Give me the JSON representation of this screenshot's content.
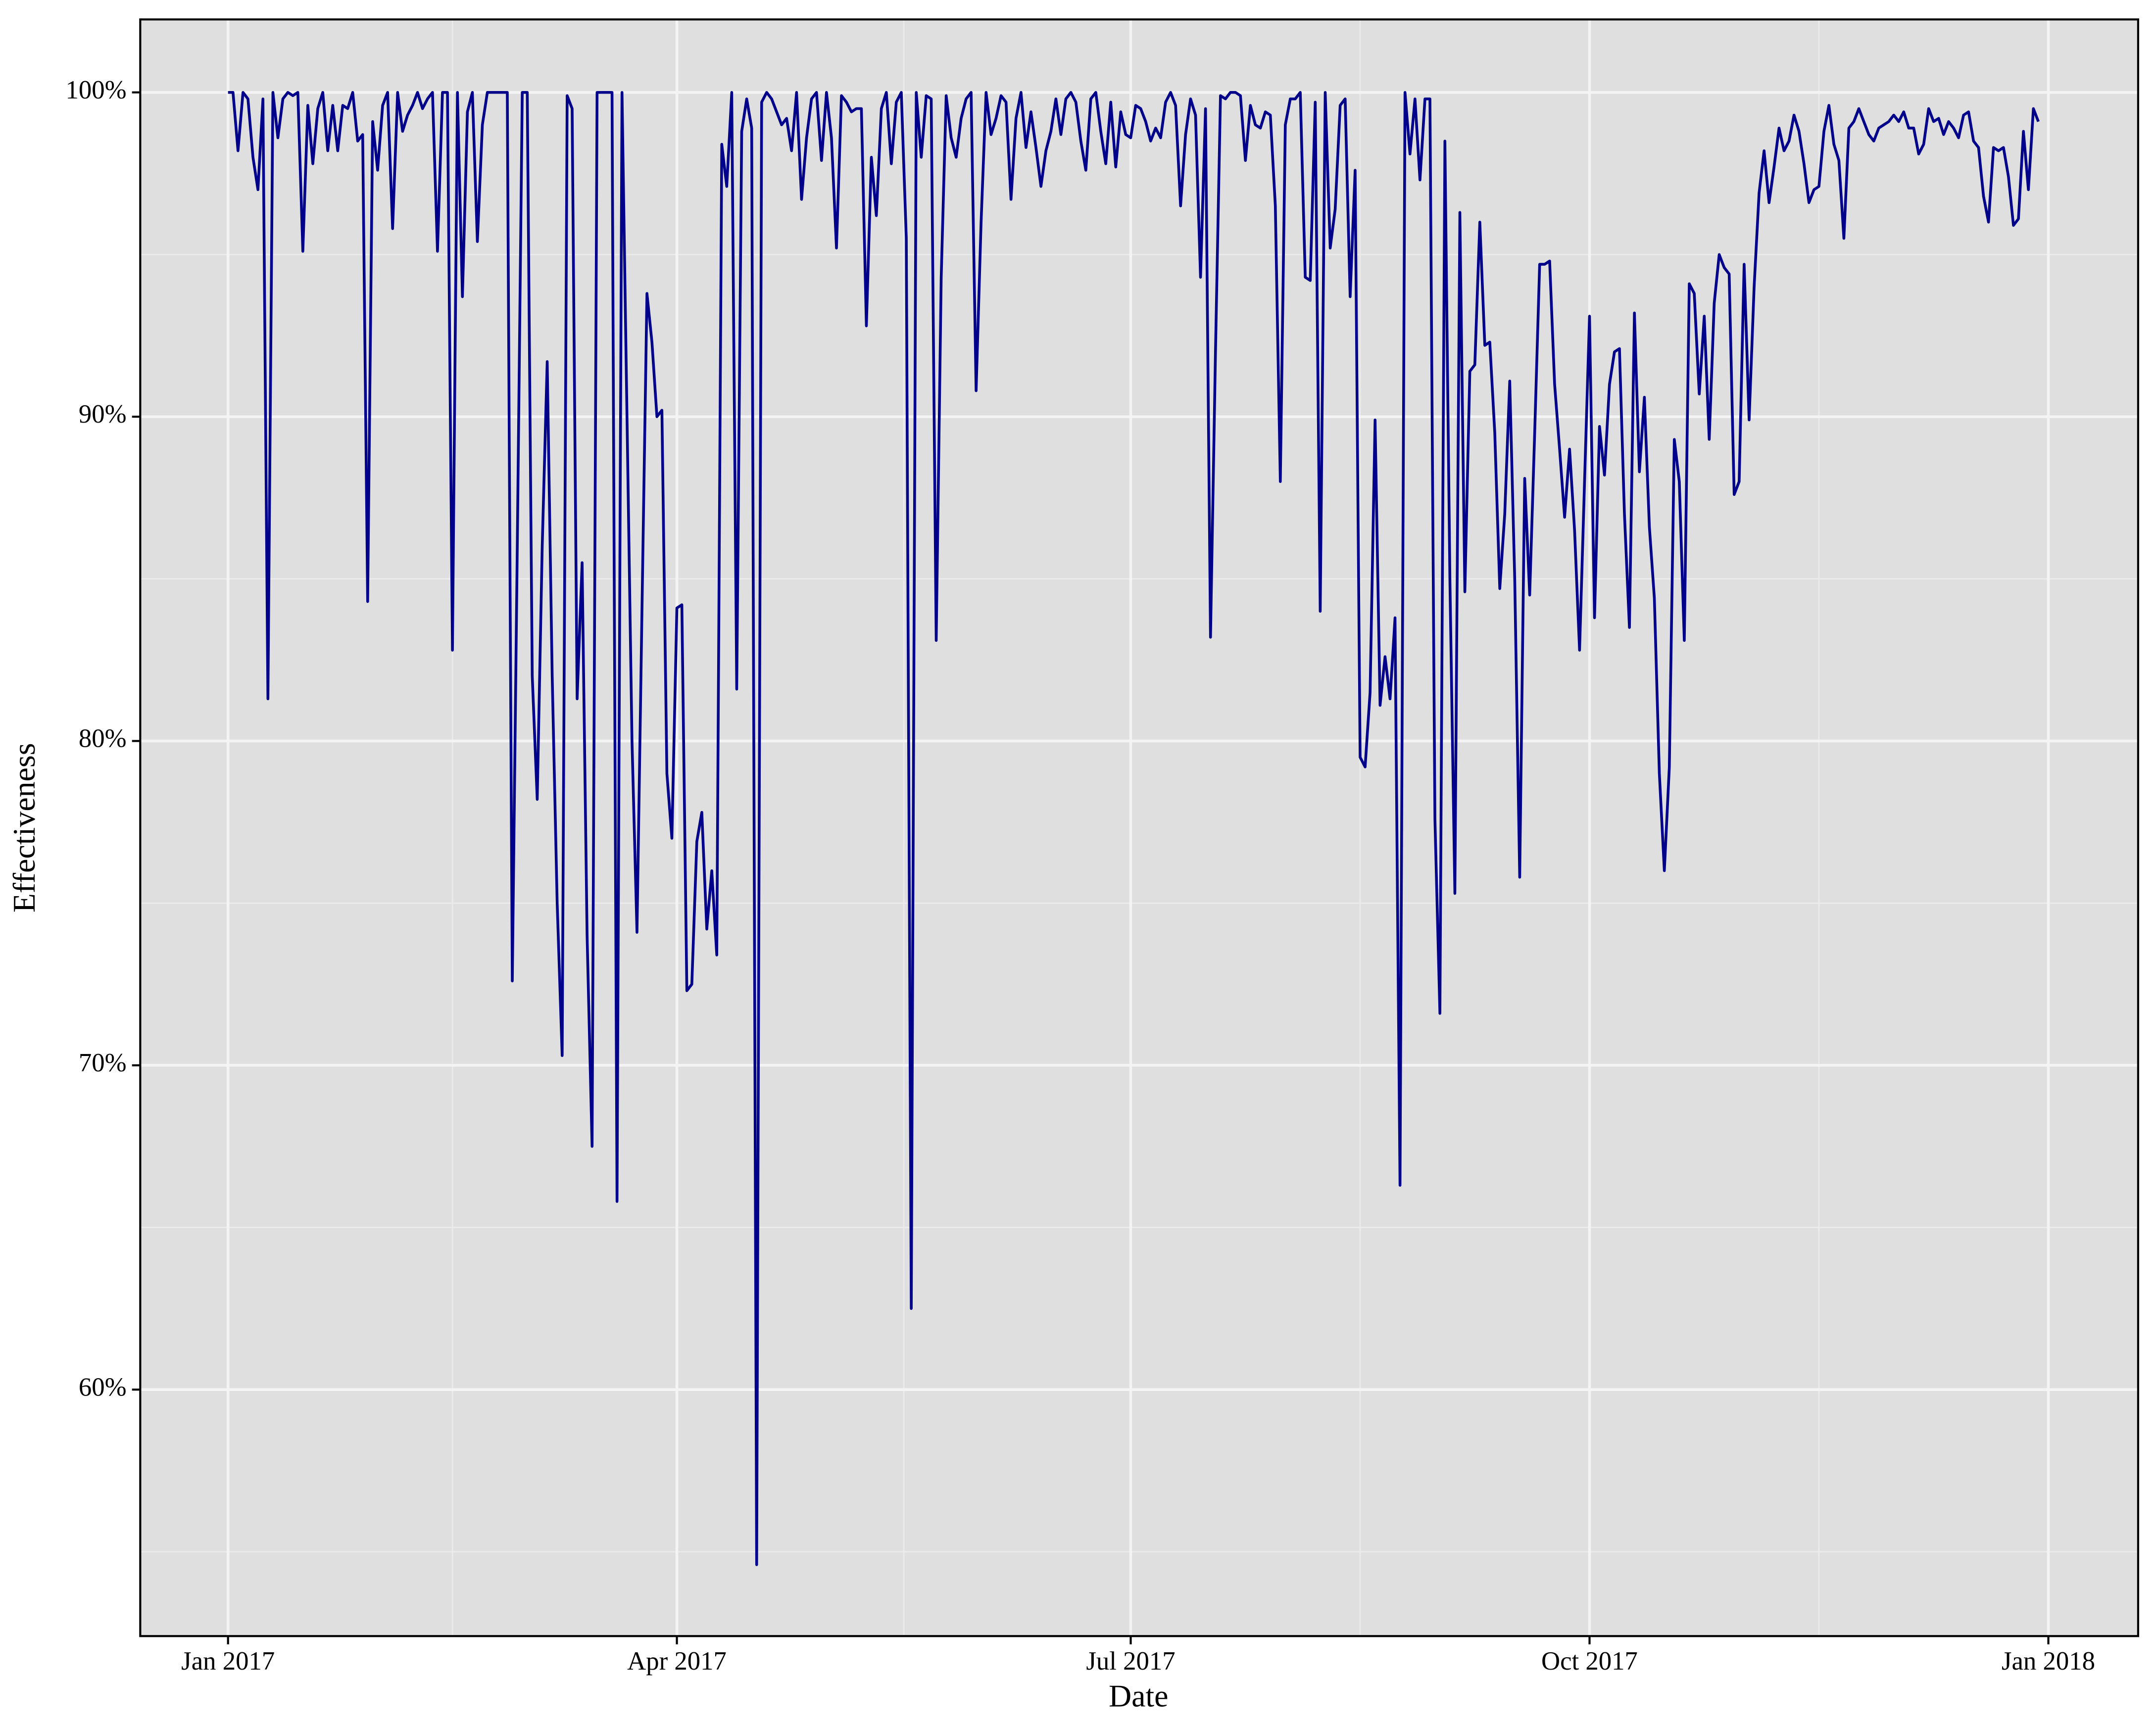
{
  "chart_data": {
    "type": "line",
    "x_label": "Date",
    "y_label": "Effectiveness",
    "color": "#00008b",
    "grid": true,
    "xlim": [
      -17.6,
      383
    ],
    "ylim": [
      52.4,
      102.25
    ],
    "xticks": [
      {
        "value": 0,
        "label": "Jan 2017"
      },
      {
        "value": 90,
        "label": "Apr 2017"
      },
      {
        "value": 181,
        "label": "Jul 2017"
      },
      {
        "value": 273,
        "label": "Oct 2017"
      },
      {
        "value": 365,
        "label": "Jan 2018"
      }
    ],
    "minor_xticks": [
      45,
      135.5,
      227,
      319
    ],
    "yticks": [
      {
        "value": 60,
        "label": "60%"
      },
      {
        "value": 70,
        "label": "70%"
      },
      {
        "value": 80,
        "label": "80%"
      },
      {
        "value": 90,
        "label": "90%"
      },
      {
        "value": 100,
        "label": "100%"
      }
    ],
    "minor_yticks": [
      55,
      65,
      75,
      85,
      95
    ],
    "x": [
      0,
      1,
      2,
      3,
      4,
      5,
      6,
      7,
      8,
      9,
      10,
      11,
      12,
      13,
      14,
      15,
      16,
      17,
      18,
      19,
      20,
      21,
      22,
      23,
      24,
      25,
      26,
      27,
      28,
      29,
      30,
      31,
      32,
      33,
      34,
      35,
      36,
      37,
      38,
      39,
      40,
      41,
      42,
      43,
      44,
      45,
      46,
      47,
      48,
      49,
      50,
      51,
      52,
      53,
      54,
      55,
      56,
      57,
      58,
      59,
      60,
      61,
      62,
      63,
      64,
      65,
      66,
      67,
      68,
      69,
      70,
      71,
      72,
      73,
      74,
      75,
      76,
      77,
      78,
      79,
      80,
      81,
      82,
      83,
      84,
      85,
      86,
      87,
      88,
      89,
      90,
      91,
      92,
      93,
      94,
      95,
      96,
      97,
      98,
      99,
      100,
      101,
      102,
      103,
      104,
      105,
      106,
      107,
      108,
      109,
      110,
      111,
      112,
      113,
      114,
      115,
      116,
      117,
      118,
      119,
      120,
      121,
      122,
      123,
      124,
      125,
      126,
      127,
      128,
      129,
      130,
      131,
      132,
      133,
      134,
      135,
      136,
      137,
      138,
      139,
      140,
      141,
      142,
      143,
      144,
      145,
      146,
      147,
      148,
      149,
      150,
      151,
      152,
      153,
      154,
      155,
      156,
      157,
      158,
      159,
      160,
      161,
      162,
      163,
      164,
      165,
      166,
      167,
      168,
      169,
      170,
      171,
      172,
      173,
      174,
      175,
      176,
      177,
      178,
      179,
      180,
      181,
      182,
      183,
      184,
      185,
      186,
      187,
      188,
      189,
      190,
      191,
      192,
      193,
      194,
      195,
      196,
      197,
      198,
      199,
      200,
      201,
      202,
      203,
      204,
      205,
      206,
      207,
      208,
      209,
      210,
      211,
      212,
      213,
      214,
      215,
      216,
      217,
      218,
      219,
      220,
      221,
      222,
      223,
      224,
      225,
      226,
      227,
      228,
      229,
      230,
      231,
      232,
      233,
      234,
      235,
      236,
      237,
      238,
      239,
      240,
      241,
      242,
      243,
      244,
      245,
      246,
      247,
      248,
      249,
      250,
      251,
      252,
      253,
      254,
      255,
      256,
      257,
      258,
      259,
      260,
      261,
      262,
      263,
      264,
      265,
      266,
      267,
      268,
      269,
      270,
      271,
      272,
      273,
      274,
      275,
      276,
      277,
      278,
      279,
      280,
      281,
      282,
      283,
      284,
      285,
      286,
      287,
      288,
      289,
      290,
      291,
      292,
      293,
      294,
      295,
      296,
      297,
      298,
      299,
      300,
      301,
      302,
      303,
      304,
      305,
      306,
      307,
      308,
      309,
      310,
      311,
      312,
      313,
      314,
      315,
      316,
      317,
      318,
      319,
      320,
      321,
      322,
      323,
      324,
      325,
      326,
      327,
      328,
      329,
      330,
      331,
      332,
      333,
      334,
      335,
      336,
      337,
      338,
      339,
      340,
      341,
      342,
      343,
      344,
      345,
      346,
      347,
      348,
      349,
      350,
      351,
      352,
      353,
      354,
      355,
      356,
      357,
      358,
      359,
      360,
      361,
      362,
      363
    ],
    "values": [
      100,
      100,
      98.2,
      100,
      99.8,
      98,
      97,
      99.8,
      81.3,
      100,
      98.6,
      99.8,
      100,
      99.9,
      100,
      95.1,
      99.6,
      97.8,
      99.5,
      100,
      98.2,
      99.6,
      98.2,
      99.6,
      99.5,
      100,
      98.5,
      98.7,
      84.3,
      99.1,
      97.6,
      99.6,
      100,
      95.8,
      100,
      98.8,
      99.3,
      99.6,
      100,
      99.5,
      99.8,
      100,
      95.1,
      100,
      100,
      82.8,
      100,
      93.7,
      99.4,
      100,
      95.4,
      99,
      100,
      100,
      100,
      100,
      100,
      72.6,
      86,
      100,
      100,
      82,
      78.2,
      86,
      91.7,
      82,
      75,
      70.3,
      99.9,
      99.5,
      81.3,
      85.5,
      74,
      67.5,
      100,
      100,
      100,
      100,
      65.8,
      100,
      90,
      80,
      74.1,
      84,
      93.8,
      92.3,
      90,
      90.2,
      79,
      77,
      84.1,
      84.2,
      72.3,
      72.5,
      76.9,
      77.8,
      74.2,
      76,
      73.4,
      98.4,
      97.1,
      100,
      81.6,
      98.8,
      99.8,
      98.9,
      54.6,
      99.7,
      100,
      99.8,
      99.4,
      99,
      99.2,
      98.2,
      100,
      96.7,
      98.6,
      99.8,
      100,
      97.9,
      100,
      98.6,
      95.2,
      99.9,
      99.7,
      99.4,
      99.5,
      99.5,
      92.8,
      98,
      96.2,
      99.5,
      100,
      97.8,
      99.7,
      100,
      95.5,
      62.5,
      100,
      98,
      99.9,
      99.8,
      83.1,
      94.3,
      99.9,
      98.6,
      98,
      99.2,
      99.8,
      100,
      90.8,
      96,
      100,
      98.7,
      99.2,
      99.9,
      99.7,
      96.7,
      99.2,
      100,
      98.3,
      99.4,
      98.3,
      97.1,
      98.2,
      98.8,
      99.8,
      98.7,
      99.8,
      100,
      99.7,
      98.5,
      97.6,
      99.8,
      100,
      98.8,
      97.8,
      99.7,
      97.7,
      99.4,
      98.7,
      98.6,
      99.6,
      99.5,
      99.1,
      98.5,
      98.9,
      98.6,
      99.7,
      100,
      99.6,
      96.5,
      98.7,
      99.8,
      99.3,
      94.3,
      99.5,
      83.2,
      92,
      99.9,
      99.8,
      100,
      100,
      99.9,
      97.9,
      99.6,
      99,
      98.9,
      99.4,
      99.3,
      96.5,
      88,
      99,
      99.8,
      99.8,
      100,
      94.3,
      94.2,
      99.7,
      84,
      100,
      95.2,
      96.4,
      99.6,
      99.8,
      93.7,
      97.6,
      79.5,
      79.2,
      81.5,
      89.9,
      81.1,
      82.6,
      81.3,
      83.8,
      66.3,
      100,
      98.1,
      99.8,
      97.3,
      99.8,
      99.8,
      77.6,
      71.6,
      98.5,
      85,
      75.3,
      96.3,
      84.6,
      91.4,
      91.6,
      96,
      92.2,
      92.3,
      89.5,
      84.7,
      87,
      91.1,
      85,
      75.8,
      88.1,
      84.5,
      89.5,
      94.7,
      94.7,
      94.8,
      91,
      89,
      86.9,
      89,
      86.5,
      82.8,
      88,
      93.1,
      83.8,
      89.7,
      88.2,
      91,
      92,
      92.1,
      87,
      83.5,
      93.2,
      88.3,
      90.6,
      86.6,
      84.4,
      79,
      76,
      79.2,
      89.3,
      88,
      83.1,
      94.1,
      93.8,
      90.7,
      93.1,
      89.3,
      93.5,
      95,
      94.6,
      94.4,
      87.6,
      88,
      94.7,
      89.9,
      94,
      96.9,
      98.2,
      96.6,
      97.7,
      98.9,
      98.2,
      98.5,
      99.3,
      98.8,
      97.8,
      96.6,
      97,
      97.1,
      98.8,
      99.6,
      98.4,
      97.9,
      95.5,
      98.9,
      99.1,
      99.5,
      99.1,
      98.7,
      98.5,
      98.9,
      99,
      99.1,
      99.3,
      99.1,
      99.4,
      98.9,
      98.9,
      98.1,
      98.4,
      99.5,
      99.1,
      99.2,
      98.7,
      99.1,
      98.9,
      98.6,
      99.3,
      99.4,
      98.5,
      98.3,
      96.8,
      96,
      98.3,
      98.2,
      98.3,
      97.4,
      95.9,
      96.1,
      98.8,
      97,
      99.5,
      99.1
    ]
  }
}
